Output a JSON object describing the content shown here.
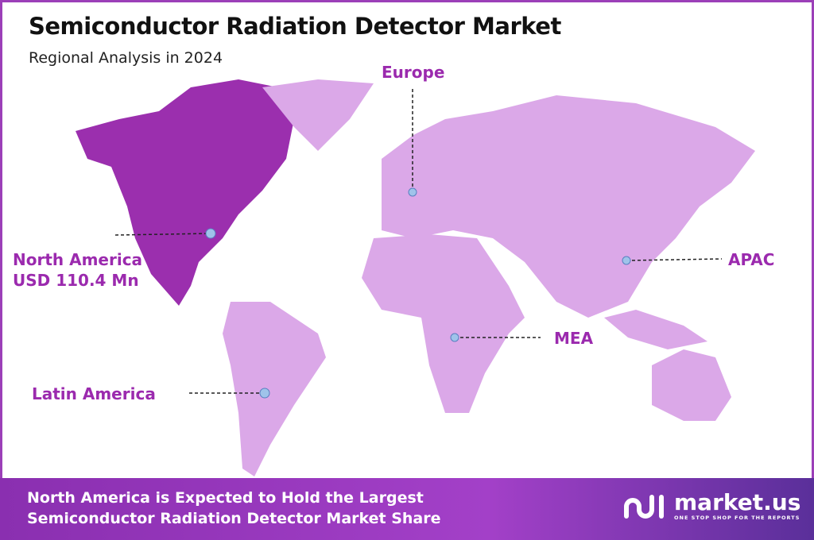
{
  "header": {
    "title": "Semiconductor Radiation Detector Market",
    "subtitle": "Regional Analysis in 2024"
  },
  "colors": {
    "highlight_region": "#9b2fae",
    "other_regions": "#dba8e8",
    "label": "#9b2aae",
    "banner": "#8a2fb0"
  },
  "regions": [
    {
      "id": "north-america",
      "label": "North America",
      "value": "USD 110.4 Mn",
      "highlighted": true
    },
    {
      "id": "europe",
      "label": "Europe"
    },
    {
      "id": "apac",
      "label": "APAC"
    },
    {
      "id": "mea",
      "label": "MEA"
    },
    {
      "id": "latin-america",
      "label": "Latin America"
    }
  ],
  "banner": {
    "line1": "North America is Expected to Hold the Largest",
    "line2": "Semiconductor Radiation Detector Market Share"
  },
  "logo": {
    "name": "market.us",
    "tagline": "ONE STOP SHOP FOR THE REPORTS"
  }
}
